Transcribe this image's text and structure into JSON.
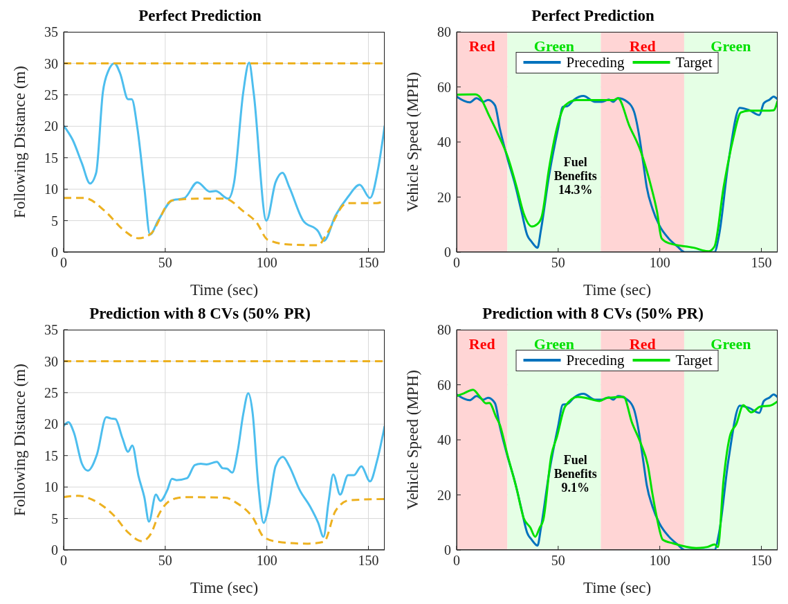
{
  "chart_data": [
    {
      "type": "line",
      "title": "Perfect Prediction",
      "xlabel": "Time (sec)",
      "ylabel": "Following Distance (m)",
      "xlim": [
        0,
        158
      ],
      "ylim": [
        0,
        35
      ],
      "xticks": [
        0,
        50,
        100,
        150
      ],
      "yticks": [
        0,
        5,
        10,
        15,
        20,
        25,
        30,
        35
      ],
      "grid": true,
      "series": [
        {
          "color": "#4dbeee",
          "line_style": "solid",
          "x": [
            0,
            4.5,
            9,
            13,
            16,
            19.3,
            22,
            25,
            27.8,
            31.7,
            33.5,
            36.3,
            39.7,
            42.5,
            46.5,
            53.3,
            59.5,
            65.8,
            72,
            74.8,
            81,
            83.9,
            88.4,
            91.3,
            93.5,
            99.8,
            104.3,
            107.7,
            111.1,
            117.9,
            125.3,
            128.1,
            133.8,
            140,
            145.7,
            150.8,
            154.8,
            158
          ],
          "values": [
            20.1,
            17.8,
            14.1,
            10.9,
            12.6,
            25.4,
            28.8,
            30,
            28.4,
            24.3,
            24.3,
            19.7,
            10.3,
            2.8,
            5,
            8.2,
            8.6,
            11.1,
            9.6,
            9.7,
            8.5,
            11.1,
            25.4,
            30.1,
            25.4,
            5,
            11.1,
            12.6,
            10.3,
            5,
            3.3,
            1.8,
            5.8,
            8.8,
            10.7,
            8.6,
            13.3,
            20.1
          ]
        },
        {
          "color": "#edb120",
          "line_style": "dashed",
          "x": [
            0,
            10.2,
            20.4,
            29.5,
            36.8,
            42.5,
            53.3,
            65.8,
            79.4,
            88.4,
            95.2,
            100.3,
            111,
            125.3,
            129.3,
            139.5,
            154.2,
            158
          ],
          "values": [
            8.6,
            8.6,
            6.5,
            3.5,
            2.2,
            2.8,
            8.2,
            8.5,
            8.5,
            6.5,
            4.6,
            2,
            1.2,
            1.1,
            2.8,
            7.8,
            7.8,
            8.2
          ]
        },
        {
          "color": "#edb120",
          "line_style": "dashed",
          "x": [
            0,
            158
          ],
          "values": [
            30,
            30
          ]
        }
      ]
    },
    {
      "type": "line",
      "title": "Perfect Prediction",
      "xlabel": "Time (sec)",
      "ylabel": "Vehicle Speed (MPH)",
      "xlim": [
        0,
        158
      ],
      "ylim": [
        0,
        80
      ],
      "xticks": [
        0,
        50,
        100,
        150
      ],
      "yticks": [
        0,
        20,
        40,
        60,
        80
      ],
      "grid": true,
      "legend": "top",
      "annotations": [
        "Fuel Benefits 14.3%"
      ],
      "bands": [
        {
          "axis": "x",
          "from": 0,
          "to": 25,
          "label": "Red",
          "color": "#ffd5d5"
        },
        {
          "axis": "x",
          "from": 25,
          "to": 71,
          "label": "Green",
          "color": "#e5ffe5"
        },
        {
          "axis": "x",
          "from": 71,
          "to": 112,
          "label": "Red",
          "color": "#ffd5d5"
        },
        {
          "axis": "x",
          "from": 112,
          "to": 158,
          "label": "Green",
          "color": "#e5ffe5"
        }
      ],
      "series": [
        {
          "name": "Preceding",
          "color": "#0072bd",
          "line_style": "solid",
          "x": [
            0,
            6.4,
            9.8,
            13.2,
            15.5,
            18.9,
            21.2,
            25.1,
            28.5,
            31.9,
            34.7,
            37,
            39.8,
            41.5,
            45.5,
            50,
            52.3,
            54.5,
            57.9,
            62.4,
            68.1,
            71.5,
            74.9,
            77.1,
            79.4,
            84,
            87.3,
            89.6,
            91.9,
            93.6,
            96.4,
            99.8,
            104.3,
            108.8,
            112.2,
            126.9,
            129.2,
            133.7,
            139.4,
            143.9,
            149,
            151.2,
            154.1,
            156,
            158
          ],
          "values": [
            56.5,
            54.4,
            55.9,
            54.6,
            55.3,
            53.3,
            45.1,
            33.9,
            25.3,
            14.9,
            6.3,
            3.7,
            1.6,
            8,
            27.8,
            45.1,
            52.8,
            53,
            55.4,
            56.7,
            54.6,
            54.6,
            55.4,
            54.6,
            55.9,
            54.6,
            51.1,
            43.4,
            32.2,
            23.5,
            15.8,
            9.7,
            5,
            2,
            0,
            0,
            6.3,
            32.2,
            52.4,
            51.6,
            49.8,
            54.1,
            55.4,
            56.5,
            55.5
          ]
        },
        {
          "name": "Target",
          "color": "#00e000",
          "line_style": "solid",
          "x": [
            0,
            9.3,
            11,
            16.1,
            20.6,
            25.1,
            29.6,
            33,
            37,
            39.8,
            42,
            45.5,
            49.4,
            53.4,
            59,
            77.1,
            79.4,
            85,
            90.7,
            95.2,
            98.6,
            100.9,
            104.3,
            116.7,
            124,
            126.9,
            131.4,
            136,
            139.9,
            143.9,
            154.1,
            156,
            158
          ],
          "values": [
            57.2,
            57.3,
            56.7,
            49.4,
            42.5,
            34.7,
            23.5,
            14.1,
            9.3,
            10.2,
            13.2,
            30.4,
            45.1,
            53.3,
            55.2,
            55.2,
            55.9,
            45.9,
            36.5,
            25.3,
            14.9,
            5,
            3.3,
            1.6,
            0.3,
            2,
            23.5,
            40.8,
            50.7,
            51.4,
            51.4,
            51.5,
            55
          ]
        }
      ]
    },
    {
      "type": "line",
      "title": "Prediction with 8 CVs (50% PR)",
      "xlabel": "Time (sec)",
      "ylabel": "Following Distance (m)",
      "xlim": [
        0,
        158
      ],
      "ylim": [
        0,
        35
      ],
      "xticks": [
        0,
        50,
        100,
        150
      ],
      "yticks": [
        0,
        5,
        10,
        15,
        20,
        25,
        30,
        35
      ],
      "grid": true,
      "series": [
        {
          "color": "#4dbeee",
          "line_style": "solid",
          "x": [
            0,
            2.3,
            5.1,
            9,
            11.9,
            16.4,
            21,
            23.2,
            25.5,
            28.9,
            31.7,
            33.8,
            36.8,
            39.7,
            42,
            45.4,
            47.6,
            51,
            53.3,
            55.5,
            60.7,
            64.6,
            67.5,
            70.3,
            75.4,
            78.2,
            80.5,
            83,
            85.6,
            88.4,
            90.9,
            93,
            95.8,
            98.4,
            100.9,
            104.3,
            107.9,
            111.1,
            116.2,
            121.3,
            125.3,
            127.9,
            130.4,
            132.7,
            136.1,
            140,
            142.9,
            146.5,
            150.8,
            154.2,
            158
          ],
          "values": [
            19.7,
            20.3,
            18.6,
            13.7,
            12.6,
            15.2,
            21.1,
            20.9,
            20.8,
            17.8,
            15.6,
            16.6,
            11.8,
            8.4,
            4.5,
            8.8,
            7.8,
            9.5,
            11.3,
            11.1,
            11.4,
            13.5,
            13.7,
            13.6,
            14,
            13,
            12.9,
            12.3,
            15.6,
            21.6,
            24.9,
            21.8,
            10.3,
            4.3,
            6.9,
            13.3,
            14.8,
            13.3,
            9.5,
            6.9,
            4.3,
            2.1,
            7.7,
            12,
            8.8,
            11.9,
            11.9,
            13.3,
            10.9,
            14.1,
            19.7
          ]
        },
        {
          "color": "#edb120",
          "line_style": "dashed",
          "x": [
            0,
            6.8,
            15.9,
            25,
            31.7,
            38.5,
            43,
            46.5,
            53.3,
            60,
            79.4,
            85,
            93,
            98.7,
            105.4,
            120.2,
            128.1,
            133.8,
            140.6,
            158
          ],
          "values": [
            8.4,
            8.6,
            7.7,
            5.4,
            2.8,
            1.4,
            2.6,
            5.4,
            8,
            8.4,
            8.3,
            7.5,
            5.2,
            2,
            1.3,
            1,
            1.3,
            6.2,
            7.9,
            8.1
          ]
        },
        {
          "color": "#edb120",
          "line_style": "dashed",
          "x": [
            0,
            158
          ],
          "values": [
            30,
            30
          ]
        }
      ]
    },
    {
      "type": "line",
      "title": "Prediction with 8 CVs (50% PR)",
      "xlabel": "Time (sec)",
      "ylabel": "Vehicle Speed (MPH)",
      "xlim": [
        0,
        158
      ],
      "ylim": [
        0,
        80
      ],
      "xticks": [
        0,
        50,
        100,
        150
      ],
      "yticks": [
        0,
        20,
        40,
        60,
        80
      ],
      "grid": true,
      "legend": "top",
      "annotations": [
        "Fuel Benefits 9.1%"
      ],
      "bands": [
        {
          "axis": "x",
          "from": 0,
          "to": 25,
          "label": "Red",
          "color": "#ffd5d5"
        },
        {
          "axis": "x",
          "from": 25,
          "to": 71,
          "label": "Green",
          "color": "#e5ffe5"
        },
        {
          "axis": "x",
          "from": 71,
          "to": 112,
          "label": "Red",
          "color": "#ffd5d5"
        },
        {
          "axis": "x",
          "from": 112,
          "to": 158,
          "label": "Green",
          "color": "#e5ffe5"
        }
      ],
      "series": [
        {
          "name": "Preceding",
          "color": "#0072bd",
          "line_style": "solid",
          "x": [
            0,
            6.4,
            9.8,
            13.2,
            15.5,
            18.9,
            21.2,
            25.1,
            28.5,
            31.9,
            34.7,
            37,
            39.8,
            41.5,
            45.5,
            50,
            52.3,
            54.5,
            57.9,
            62.4,
            68.1,
            71.5,
            74.9,
            77.1,
            79.4,
            84,
            87.3,
            89.6,
            91.9,
            93.6,
            96.4,
            99.8,
            104.3,
            108.8,
            112.2,
            126.9,
            129.2,
            133.7,
            139.4,
            143.9,
            149,
            151.2,
            154.1,
            156,
            158
          ],
          "values": [
            56.5,
            54.4,
            55.9,
            54.6,
            55.3,
            53.3,
            45.1,
            33.9,
            25.3,
            14.9,
            6.3,
            3.7,
            1.6,
            8,
            27.8,
            45.1,
            52.8,
            53,
            55.4,
            56.7,
            54.6,
            54.6,
            55.4,
            54.6,
            55.9,
            54.6,
            51.1,
            43.4,
            32.2,
            23.5,
            15.8,
            9.7,
            5,
            2,
            0,
            0,
            6.3,
            32.2,
            52.4,
            51.6,
            49.8,
            54.1,
            55.4,
            56.5,
            55.5
          ]
        },
        {
          "name": "Target",
          "color": "#00e000",
          "line_style": "solid",
          "x": [
            0,
            3.6,
            8.1,
            11.5,
            14.4,
            16.1,
            19.5,
            21.2,
            25.1,
            29.6,
            33,
            36.3,
            38.7,
            40.9,
            42.6,
            46.6,
            49.4,
            53.4,
            59.6,
            63.6,
            70.4,
            73.8,
            77.1,
            82.2,
            86.2,
            90.7,
            94.1,
            96.4,
            98.6,
            101.5,
            106.6,
            117.9,
            123.5,
            126.9,
            128.6,
            131.4,
            134.8,
            137.6,
            141.1,
            145,
            149.5,
            154.1,
            158
          ],
          "values": [
            55.9,
            56.9,
            58.2,
            55.6,
            53.3,
            53.4,
            48.2,
            45.6,
            34.3,
            22.1,
            11.6,
            8.1,
            4.8,
            8.1,
            10.7,
            34.3,
            41.2,
            52.1,
            55.6,
            55.2,
            54.1,
            55.2,
            55.4,
            55.6,
            46.5,
            38.6,
            30.8,
            20.3,
            11.6,
            3.7,
            2.4,
            0.7,
            1.1,
            2,
            1.1,
            25.5,
            42.1,
            45.6,
            52.6,
            50,
            52.1,
            52.4,
            54
          ]
        }
      ]
    }
  ]
}
